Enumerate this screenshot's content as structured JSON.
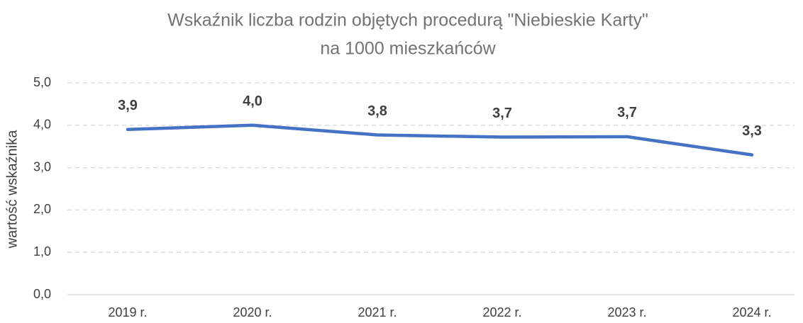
{
  "chart_data": {
    "type": "line",
    "title": [
      "Wskaźnik liczba rodzin objętych procedurą \"Niebieskie Karty\"",
      "na 1000 mieszkańców"
    ],
    "y_label": "wartość  wskaźnika",
    "categories": [
      "2019 r.",
      "2020 r.",
      "2021 r.",
      "2022 r.",
      "2023 r.",
      "2024 r."
    ],
    "series": [
      {
        "name": "wskaźnik",
        "color": "#4472c4",
        "values": [
          3.9,
          4.0,
          3.77,
          3.72,
          3.73,
          3.3
        ],
        "value_labels": [
          "3,9",
          "4,0",
          "3,8",
          "3,7",
          "3,7",
          "3,3"
        ]
      }
    ],
    "ylim": [
      0,
      5
    ],
    "yticks": [
      {
        "value": 0,
        "label": "0,0"
      },
      {
        "value": 1,
        "label": "1,0"
      },
      {
        "value": 2,
        "label": "2,0"
      },
      {
        "value": 3,
        "label": "3,0"
      },
      {
        "value": 4,
        "label": "4,0"
      },
      {
        "value": 5,
        "label": "5,0"
      }
    ],
    "grid": true
  }
}
